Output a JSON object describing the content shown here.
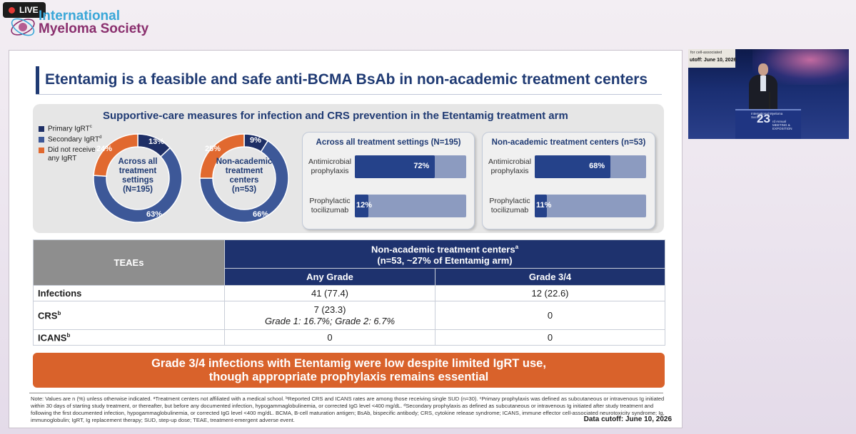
{
  "stream": {
    "live_label": "LIVE",
    "colors": {
      "live_dot": "#e53935",
      "badge": "#1d1d1d"
    }
  },
  "brand": {
    "line1": "International",
    "line2": "Myeloma Society",
    "colors": {
      "line1": "#3aa7d8",
      "line2": "#8a2f6e"
    }
  },
  "slide": {
    "title": "Etentamig is a feasible and safe anti-BCMA BsAb in non-academic treatment centers",
    "supportive_care": {
      "heading": "Supportive-care measures for infection and CRS prevention in the Etentamig treatment arm",
      "legend": [
        {
          "label": "Primary IgRT",
          "sup": "c",
          "color": "#1e2f66"
        },
        {
          "label": "Secondary IgRT",
          "sup": "d",
          "color": "#3d5898"
        },
        {
          "label": "Did not receive any IgRT",
          "sup": "",
          "color": "#e1692f"
        }
      ],
      "donuts": [
        {
          "center_lines": [
            "Across all",
            "treatment",
            "settings",
            "(N=195)"
          ],
          "values": [
            13,
            63,
            24
          ],
          "labels": [
            "13%",
            "63%",
            "24%"
          ]
        },
        {
          "center_lines": [
            "Non-academic",
            "treatment",
            "centers",
            "(n=53)"
          ],
          "values": [
            9,
            66,
            25
          ],
          "labels": [
            "9%",
            "66%",
            "25%"
          ]
        }
      ],
      "bar_panels": [
        {
          "title": "Across all treatment settings (N=195)",
          "rows": [
            {
              "label": "Antimicrobial prophylaxis",
              "value": 72,
              "value_label": "72%"
            },
            {
              "label": "Prophylactic tocilizumab",
              "value": 12,
              "value_label": "12%"
            }
          ]
        },
        {
          "title": "Non-academic treatment centers (n=53)",
          "rows": [
            {
              "label": "Antimicrobial prophylaxis",
              "value": 68,
              "value_label": "68%"
            },
            {
              "label": "Prophylactic tocilizumab",
              "value": 11,
              "value_label": "11%"
            }
          ]
        }
      ]
    },
    "table": {
      "col_teae": "TEAEs",
      "group_header_line1": "Non-academic treatment centers",
      "group_header_sup": "a",
      "group_header_line2": "(n=53, ~27% of Etentamig arm)",
      "col_any": "Any Grade",
      "col_g34": "Grade 3/4",
      "rows": [
        {
          "label": "Infections",
          "sup": "",
          "any": "41 (77.4)",
          "any_sub": "",
          "g34": "12 (22.6)"
        },
        {
          "label": "CRS",
          "sup": "b",
          "any": "7 (23.3)",
          "any_sub": "Grade 1: 16.7%; Grade 2: 6.7%",
          "g34": "0"
        },
        {
          "label": "ICANS",
          "sup": "b",
          "any": "0",
          "any_sub": "",
          "g34": "0"
        }
      ]
    },
    "conclusion_line1": "Grade 3/4  infections with Etentamig were low despite limited IgRT use,",
    "conclusion_line2": "though appropriate prophylaxis remains essential",
    "footnote": "Note: Values are n (%) unless otherwise indicated. ᵃTreatment centers not affiliated with a medical school. ᵇReported CRS and ICANS rates are among those receiving single SUD (n=30). ᶜPrimary prophylaxis was defined as subcutaneous or intravenous Ig initiated within 30 days of starting study treatment, or thereafter, but before any documented infection, hypogammaglobulinemia, or corrected IgG level <400 mg/dL. ᵈSecondary prophylaxis as defined as subcutaneous or intravenous Ig initiated after study treatment and following the first documented infection, hypogammaglobulinemia, or corrected IgG level <400 mg/dL. BCMA, B-cell maturation antigen; BsAb, bispecific antibody; CRS, cytokine release syndrome; ICANS, immune effector cell-associated neurotoxicity syndrome; Ig, immunoglobulin; IgRT, Ig replacement therapy; SUD, step-up dose; TEAE, treatment-emergent adverse event.",
    "cutoff": "Data cutoff: June 10, 2026"
  },
  "camera": {
    "screen_text": "for cell-associated",
    "screen_cutoff": "utoff: June 10, 2026",
    "podium_society": "International Myeloma Society",
    "podium_number": "23",
    "podium_annual": "rd Annual MEETING & EXPOSITION"
  }
}
